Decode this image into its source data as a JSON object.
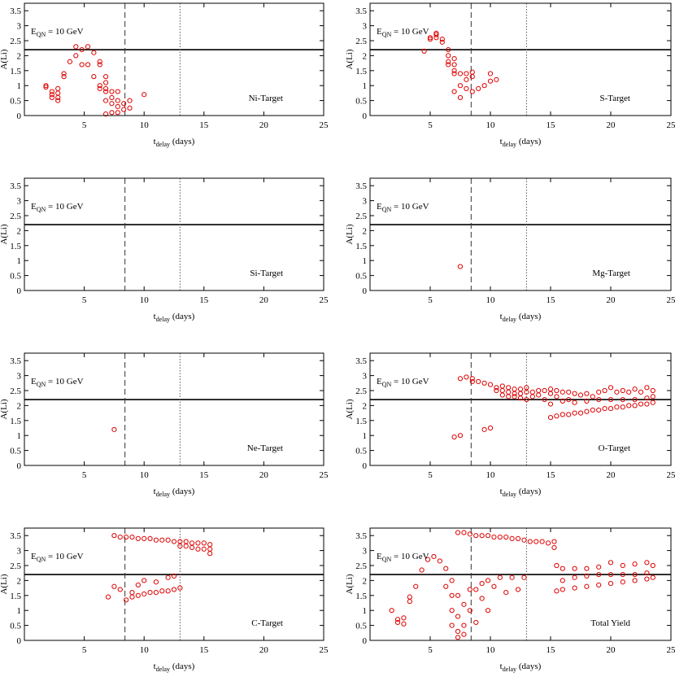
{
  "chart_data": [
    {
      "type": "scatter",
      "label": "Ni-Target",
      "ylabel": "A(Li)",
      "xlabel": {
        "text": "t",
        "sub": "delay",
        "suffix": " (days)"
      },
      "annotation": {
        "text": "E",
        "sub": "QN",
        "suffix": " = 10 GeV"
      },
      "xlim": [
        0,
        25
      ],
      "ylim": [
        0,
        3.75
      ],
      "xticks": [
        5,
        10,
        15,
        20,
        25
      ],
      "yticks": [
        0,
        0.5,
        1,
        1.5,
        2,
        2.5,
        3,
        3.5
      ],
      "hlines": [
        2.2
      ],
      "vlines": [
        {
          "x": 8.4,
          "style": "dashed"
        },
        {
          "x": 13,
          "style": "dotted"
        }
      ],
      "color": "#e00000",
      "x": [
        1.8,
        1.8,
        2.3,
        2.3,
        2.3,
        2.8,
        2.8,
        2.8,
        2.8,
        3.3,
        3.3,
        3.8,
        4.3,
        4.3,
        4.8,
        4.8,
        5.3,
        5.3,
        5.8,
        5.8,
        6.3,
        6.3,
        6.3,
        6.3,
        6.8,
        6.8,
        6.8,
        6.8,
        6.8,
        6.8,
        7.3,
        7.3,
        7.3,
        7.3,
        7.8,
        7.8,
        7.8,
        7.8,
        8.3,
        8.3,
        8.8,
        8.8,
        10
      ],
      "values": [
        1.0,
        0.95,
        0.8,
        0.7,
        0.6,
        0.9,
        0.75,
        0.6,
        0.5,
        1.4,
        1.3,
        1.8,
        2.3,
        2.0,
        2.2,
        1.7,
        2.3,
        1.7,
        2.1,
        1.3,
        1.8,
        1.7,
        1.0,
        0.9,
        1.3,
        1.1,
        0.9,
        0.8,
        0.5,
        0.05,
        0.8,
        0.6,
        0.4,
        0.1,
        0.8,
        0.5,
        0.3,
        0.1,
        0.4,
        0.2,
        0.5,
        0.25,
        0.7
      ]
    },
    {
      "type": "scatter",
      "label": "S-Target",
      "ylabel": "A(Li)",
      "xlabel": {
        "text": "t",
        "sub": "delay",
        "suffix": " (days)"
      },
      "annotation": {
        "text": "E",
        "sub": "QN",
        "suffix": " = 10 GeV"
      },
      "xlim": [
        0,
        25
      ],
      "ylim": [
        0,
        3.75
      ],
      "xticks": [
        5,
        10,
        15,
        20,
        25
      ],
      "yticks": [
        0,
        0.5,
        1,
        1.5,
        2,
        2.5,
        3,
        3.5
      ],
      "hlines": [
        2.2
      ],
      "vlines": [
        {
          "x": 8.4,
          "style": "dashed"
        },
        {
          "x": 13,
          "style": "dotted"
        }
      ],
      "color": "#e00000",
      "x": [
        4.5,
        5,
        5,
        5.5,
        5.5,
        5.5,
        6,
        6,
        6.5,
        6.5,
        6.5,
        6.5,
        7,
        7,
        7,
        7,
        7,
        7.5,
        7.5,
        7.5,
        8,
        8,
        8,
        8.5,
        8.5,
        8.5,
        9,
        9.5,
        10,
        10,
        10.5
      ],
      "values": [
        2.15,
        2.55,
        2.6,
        2.7,
        2.6,
        2.75,
        2.55,
        2.45,
        2.2,
        2.0,
        1.8,
        1.7,
        1.9,
        1.7,
        1.5,
        1.4,
        0.8,
        1.4,
        1.0,
        0.6,
        1.2,
        0.9,
        1.4,
        1.45,
        1.3,
        0.8,
        0.9,
        1.0,
        1.4,
        1.15,
        1.2
      ]
    },
    {
      "type": "scatter",
      "label": "Si-Target",
      "ylabel": "A(Li)",
      "xlabel": {
        "text": "t",
        "sub": "delay",
        "suffix": " (days)"
      },
      "annotation": {
        "text": "E",
        "sub": "QN",
        "suffix": " = 10 GeV"
      },
      "xlim": [
        0,
        25
      ],
      "ylim": [
        0,
        3.75
      ],
      "xticks": [
        5,
        10,
        15,
        20,
        25
      ],
      "yticks": [
        0,
        0.5,
        1,
        1.5,
        2,
        2.5,
        3,
        3.5
      ],
      "hlines": [
        2.2
      ],
      "vlines": [
        {
          "x": 8.4,
          "style": "dashed"
        },
        {
          "x": 13,
          "style": "dotted"
        }
      ],
      "color": "#e00000",
      "x": [],
      "values": []
    },
    {
      "type": "scatter",
      "label": "Mg-Target",
      "ylabel": "A(Li)",
      "xlabel": {
        "text": "t",
        "sub": "delay",
        "suffix": " (days)"
      },
      "annotation": {
        "text": "E",
        "sub": "QN",
        "suffix": " = 10 GeV"
      },
      "xlim": [
        0,
        25
      ],
      "ylim": [
        0,
        3.75
      ],
      "xticks": [
        5,
        10,
        15,
        20,
        25
      ],
      "yticks": [
        0,
        0.5,
        1,
        1.5,
        2,
        2.5,
        3,
        3.5
      ],
      "hlines": [
        2.2
      ],
      "vlines": [
        {
          "x": 8.4,
          "style": "dashed"
        },
        {
          "x": 13,
          "style": "dotted"
        }
      ],
      "color": "#e00000",
      "x": [
        7.5
      ],
      "values": [
        0.8
      ]
    },
    {
      "type": "scatter",
      "label": "Ne-Target",
      "ylabel": "A(Li)",
      "xlabel": {
        "text": "t",
        "sub": "delay",
        "suffix": " (days)"
      },
      "annotation": {
        "text": "E",
        "sub": "QN",
        "suffix": " = 10 GeV"
      },
      "xlim": [
        0,
        25
      ],
      "ylim": [
        0,
        3.75
      ],
      "xticks": [
        5,
        10,
        15,
        20,
        25
      ],
      "yticks": [
        0,
        0.5,
        1,
        1.5,
        2,
        2.5,
        3,
        3.5
      ],
      "hlines": [
        2.2
      ],
      "vlines": [
        {
          "x": 8.4,
          "style": "dashed"
        },
        {
          "x": 13,
          "style": "dotted"
        }
      ],
      "color": "#e00000",
      "x": [
        7.5
      ],
      "values": [
        1.2
      ]
    },
    {
      "type": "scatter",
      "label": "O-Target",
      "ylabel": "A(Li)",
      "xlabel": {
        "text": "t",
        "sub": "delay",
        "suffix": " (days)"
      },
      "annotation": {
        "text": "E",
        "sub": "QN",
        "suffix": " = 10 GeV"
      },
      "xlim": [
        0,
        25
      ],
      "ylim": [
        0,
        3.75
      ],
      "xticks": [
        5,
        10,
        15,
        20,
        25
      ],
      "yticks": [
        0,
        0.5,
        1,
        1.5,
        2,
        2.5,
        3,
        3.5
      ],
      "hlines": [
        2.2
      ],
      "vlines": [
        {
          "x": 8.4,
          "style": "dashed"
        },
        {
          "x": 13,
          "style": "dotted"
        }
      ],
      "color": "#e00000",
      "x": [
        7,
        7.5,
        7.5,
        8,
        8.5,
        8.5,
        9,
        9.5,
        9.5,
        10,
        10,
        10.5,
        10.5,
        11,
        11,
        11,
        11.5,
        11.5,
        11.5,
        12,
        12,
        12,
        12.5,
        12.5,
        12.5,
        13,
        13,
        13,
        13.5,
        13.5,
        14,
        14,
        14.5,
        14.5,
        15,
        15,
        15,
        15,
        15.5,
        15.5,
        15.5,
        16,
        16,
        16,
        16.5,
        16.5,
        16.5,
        17,
        17,
        17,
        17.5,
        17.5,
        18,
        18,
        18,
        18.5,
        18.5,
        19,
        19,
        19,
        19.5,
        19.5,
        20,
        20,
        20,
        20.5,
        20.5,
        21,
        21,
        21,
        21.5,
        21.5,
        22,
        22,
        22,
        22.5,
        22.5,
        23,
        23,
        23,
        23.5,
        23.5,
        23.5
      ],
      "values": [
        0.95,
        2.9,
        1.0,
        2.95,
        2.9,
        2.8,
        2.8,
        2.75,
        1.2,
        2.7,
        1.25,
        2.6,
        2.5,
        2.65,
        2.5,
        2.35,
        2.6,
        2.45,
        2.3,
        2.55,
        2.4,
        2.3,
        2.55,
        2.4,
        2.25,
        2.6,
        2.45,
        2.2,
        2.45,
        2.3,
        2.5,
        2.35,
        2.5,
        2.2,
        2.55,
        2.4,
        2.05,
        1.6,
        2.5,
        2.3,
        1.65,
        2.45,
        2.15,
        1.7,
        2.45,
        2.2,
        1.7,
        2.4,
        2.1,
        1.75,
        2.35,
        1.75,
        2.4,
        2.15,
        1.8,
        2.3,
        1.85,
        2.45,
        2.2,
        1.85,
        2.5,
        1.9,
        2.6,
        2.2,
        1.9,
        2.45,
        1.95,
        2.5,
        2.2,
        1.95,
        2.45,
        2.0,
        2.55,
        2.2,
        2.0,
        2.45,
        2.05,
        2.6,
        2.25,
        2.05,
        2.5,
        2.3,
        2.1
      ]
    },
    {
      "type": "scatter",
      "label": "C-Target",
      "ylabel": "A(Li)",
      "xlabel": {
        "text": "t",
        "sub": "delay",
        "suffix": " (days)"
      },
      "annotation": {
        "text": "E",
        "sub": "QN",
        "suffix": " = 10 GeV"
      },
      "xlim": [
        0,
        25
      ],
      "ylim": [
        0,
        3.75
      ],
      "xticks": [
        5,
        10,
        15,
        20,
        25
      ],
      "yticks": [
        0,
        0.5,
        1,
        1.5,
        2,
        2.5,
        3,
        3.5
      ],
      "hlines": [
        2.2
      ],
      "vlines": [
        {
          "x": 8.4,
          "style": "dashed"
        },
        {
          "x": 13,
          "style": "dotted"
        }
      ],
      "color": "#e00000",
      "x": [
        7,
        7.5,
        7.5,
        8,
        8,
        8.5,
        8.5,
        9,
        9,
        9,
        9.5,
        9.5,
        9.5,
        10,
        10,
        10,
        10.5,
        10.5,
        11,
        11,
        11,
        11.5,
        11.5,
        12,
        12,
        12,
        12.5,
        12.5,
        12.5,
        13,
        13,
        13,
        13.5,
        13.5,
        14,
        14,
        14.5,
        14.5,
        15,
        15,
        15.5,
        15.5,
        15.5
      ],
      "values": [
        1.45,
        3.5,
        1.8,
        3.45,
        1.7,
        3.45,
        1.35,
        3.45,
        1.6,
        1.45,
        3.4,
        1.85,
        1.5,
        3.4,
        2.0,
        1.55,
        3.4,
        1.6,
        3.35,
        1.95,
        1.6,
        3.35,
        1.65,
        3.35,
        2.1,
        1.65,
        3.3,
        2.15,
        1.7,
        3.3,
        3.15,
        1.75,
        3.3,
        3.15,
        3.25,
        3.1,
        3.25,
        3.05,
        3.25,
        3.05,
        3.2,
        3.05,
        2.9
      ]
    },
    {
      "type": "scatter",
      "label": "Total Yield",
      "ylabel": "A(Li)",
      "xlabel": {
        "text": "t",
        "sub": "delay",
        "suffix": " (days)"
      },
      "annotation": {
        "text": "E",
        "sub": "QN",
        "suffix": " = 10 GeV"
      },
      "xlim": [
        0,
        25
      ],
      "ylim": [
        0,
        3.75
      ],
      "xticks": [
        5,
        10,
        15,
        20,
        25
      ],
      "yticks": [
        0,
        0.5,
        1,
        1.5,
        2,
        2.5,
        3,
        3.5
      ],
      "hlines": [
        2.2
      ],
      "vlines": [
        {
          "x": 8.4,
          "style": "dashed"
        },
        {
          "x": 13,
          "style": "dotted"
        }
      ],
      "color": "#e00000",
      "x": [
        1.8,
        2.3,
        2.3,
        2.8,
        2.8,
        3.3,
        3.3,
        3.8,
        4.3,
        4.8,
        5.3,
        5.8,
        6.3,
        6.3,
        6.8,
        6.8,
        6.8,
        6.8,
        7.3,
        7.3,
        7.3,
        7.3,
        7.3,
        7.8,
        7.8,
        7.8,
        7.8,
        8.3,
        8.3,
        8.3,
        8.8,
        8.8,
        8.8,
        9.3,
        9.3,
        9.3,
        9.8,
        9.8,
        9.8,
        10.3,
        10.3,
        10.8,
        10.8,
        11.3,
        11.3,
        11.8,
        11.8,
        12.3,
        12.3,
        12.8,
        12.8,
        13.3,
        13.8,
        14.3,
        14.8,
        15.3,
        15.3,
        15.5,
        15.5,
        16,
        16,
        16,
        17,
        17,
        17,
        18,
        18,
        18,
        19,
        19,
        19,
        20,
        20,
        20,
        21,
        21,
        21,
        22,
        22,
        22,
        23,
        23,
        23,
        23.5,
        23.5
      ],
      "values": [
        1.0,
        0.7,
        0.6,
        0.75,
        0.55,
        1.45,
        1.3,
        1.8,
        2.35,
        2.7,
        2.8,
        2.65,
        2.4,
        1.8,
        2.0,
        1.5,
        1.0,
        0.5,
        3.6,
        1.5,
        0.8,
        0.3,
        0.1,
        3.6,
        1.2,
        0.5,
        0.2,
        3.55,
        1.7,
        1.0,
        3.5,
        1.7,
        0.6,
        3.5,
        1.9,
        1.4,
        3.5,
        2.0,
        1.0,
        3.45,
        1.8,
        3.45,
        2.1,
        3.45,
        1.6,
        3.4,
        2.1,
        3.4,
        1.7,
        3.35,
        2.1,
        3.3,
        3.3,
        3.3,
        3.25,
        3.3,
        3.1,
        2.5,
        1.65,
        2.4,
        2.0,
        1.7,
        2.4,
        2.1,
        1.75,
        2.4,
        2.15,
        1.8,
        2.45,
        2.2,
        1.85,
        2.6,
        2.2,
        1.9,
        2.5,
        2.2,
        1.95,
        2.55,
        2.2,
        2.0,
        2.6,
        2.25,
        2.05,
        2.5,
        2.1
      ]
    }
  ]
}
